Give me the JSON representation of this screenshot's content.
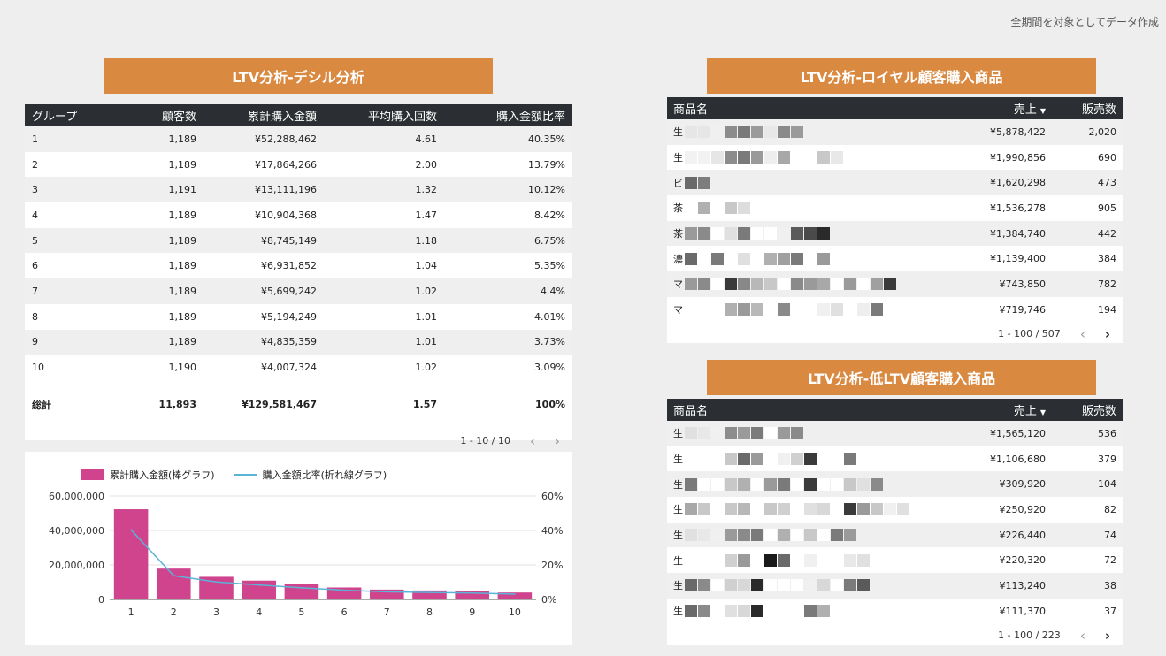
{
  "note": "全期間を対象としてデータ作成",
  "decile": {
    "title": "LTV分析-デシル分析",
    "columns": [
      "グループ",
      "顧客数",
      "累計購入金額",
      "平均購入回数",
      "購入金額比率"
    ],
    "rows": [
      [
        "1",
        "1,189",
        "¥52,288,462",
        "4.61",
        "40.35%"
      ],
      [
        "2",
        "1,189",
        "¥17,864,266",
        "2.00",
        "13.79%"
      ],
      [
        "3",
        "1,191",
        "¥13,111,196",
        "1.32",
        "10.12%"
      ],
      [
        "4",
        "1,189",
        "¥10,904,368",
        "1.47",
        "8.42%"
      ],
      [
        "5",
        "1,189",
        "¥8,745,149",
        "1.18",
        "6.75%"
      ],
      [
        "6",
        "1,189",
        "¥6,931,852",
        "1.04",
        "5.35%"
      ],
      [
        "7",
        "1,189",
        "¥5,699,242",
        "1.02",
        "4.4%"
      ],
      [
        "8",
        "1,189",
        "¥5,194,249",
        "1.01",
        "4.01%"
      ],
      [
        "9",
        "1,189",
        "¥4,835,359",
        "1.01",
        "3.73%"
      ],
      [
        "10",
        "1,190",
        "¥4,007,324",
        "1.02",
        "3.09%"
      ]
    ],
    "total": [
      "総計",
      "11,893",
      "¥129,581,467",
      "1.57",
      "100%"
    ],
    "pager": "1 - 10 / 10"
  },
  "arrows": {
    "prev": "‹",
    "next": "›"
  },
  "chart_data": {
    "type": "bar",
    "categories": [
      "1",
      "2",
      "3",
      "4",
      "5",
      "6",
      "7",
      "8",
      "9",
      "10"
    ],
    "series": [
      {
        "name": "累計購入金額(棒グラフ)",
        "type": "bar",
        "axis": "left",
        "color": "#d0448e",
        "values": [
          52288462,
          17864266,
          13111196,
          10904368,
          8745149,
          6931852,
          5699242,
          5194249,
          4835359,
          4007324
        ]
      },
      {
        "name": "購入金額比率(折れ線グラフ)",
        "type": "line",
        "axis": "right",
        "color": "#5ab4d8",
        "values": [
          40.35,
          13.79,
          10.12,
          8.42,
          6.75,
          5.35,
          4.4,
          4.01,
          3.73,
          3.09
        ]
      }
    ],
    "ylim": [
      0,
      60000000
    ],
    "y2lim": [
      0,
      60
    ],
    "yticks": [
      "0",
      "20,000,000",
      "40,000,000",
      "60,000,000"
    ],
    "y2ticks": [
      "0%",
      "20%",
      "40%",
      "60%"
    ],
    "legend": "top-left",
    "grid": true
  },
  "loyal": {
    "title": "LTV分析-ロイヤル顧客購入商品",
    "columns": [
      "商品名",
      "売上",
      "販売数"
    ],
    "sort_icon": "▼",
    "rows": [
      {
        "first": "生",
        "blocks": [
          "#e6e6e6",
          "#e6e6e6",
          "#f0f0f0",
          "#8c8c8c",
          "#7a7a7a",
          "#9a9a9a",
          "#e8e8e8",
          "#8a8a8a",
          "#9a9a9a"
        ],
        "sales": "¥5,878,422",
        "qty": "2,020"
      },
      {
        "first": "生",
        "blocks": [
          "#f2f2f2",
          "#f2f2f2",
          "#e6e6e6",
          "#8c8c8c",
          "#7a7a7a",
          "#9a9a9a",
          "#eeeeee",
          "#a8a8a8",
          "#ffffff",
          "#ffffff",
          "#c8c8c8",
          "#e8e8e8"
        ],
        "sales": "¥1,990,856",
        "qty": "690"
      },
      {
        "first": "ビ",
        "blocks": [
          "#6a6a6a",
          "#7d7d7d"
        ],
        "sales": "¥1,620,298",
        "qty": "473"
      },
      {
        "first": "茶",
        "blocks": [
          "#ffffff",
          "#b0b0b0",
          "#ffffff",
          "#c8c8c8",
          "#dddddd"
        ],
        "sales": "¥1,536,278",
        "qty": "905"
      },
      {
        "first": "茶",
        "blocks": [
          "#9a9a9a",
          "#8a8a8a",
          "#ffffff",
          "#e0e0e0",
          "#7a7a7a",
          "#ffffff",
          "#ffffff",
          "#f0f0f0",
          "#5a5a5a",
          "#4a4a4a",
          "#2a2a2a"
        ],
        "sales": "¥1,384,740",
        "qty": "442"
      },
      {
        "first": "濃",
        "blocks": [
          "#6a6a6a",
          "#ffffff",
          "#7a7a7a",
          "#ffffff",
          "#e0e0e0",
          "#ffffff",
          "#b0b0b0",
          "#a0a0a0",
          "#7a7a7a",
          "#ffffff",
          "#9a9a9a"
        ],
        "sales": "¥1,139,400",
        "qty": "384"
      },
      {
        "first": "マ",
        "blocks": [
          "#9a9a9a",
          "#8a8a8a",
          "#ffffff",
          "#3a3a3a",
          "#888888",
          "#b8b8b8",
          "#c8c8c8",
          "#ffffff",
          "#8a8a8a",
          "#9a9a9a",
          "#a8a8a8",
          "#ffffff",
          "#9a9a9a",
          "#ffffff",
          "#a0a0a0",
          "#3a3a3a"
        ],
        "sales": "¥743,850",
        "qty": "782"
      },
      {
        "first": "マ",
        "blocks": [
          "#ffffff",
          "#ffffff",
          "#ffffff",
          "#b0b0b0",
          "#9a9a9a",
          "#b8b8b8",
          "#ffffff",
          "#8a8a8a",
          "#ffffff",
          "#ffffff",
          "#f0f0f0",
          "#e0e0e0",
          "#ffffff",
          "#eeeeee",
          "#7a7a7a"
        ],
        "sales": "¥719,746",
        "qty": "194"
      }
    ],
    "pager": "1 - 100 / 507"
  },
  "low": {
    "title": "LTV分析-低LTV顧客購入商品",
    "columns": [
      "商品名",
      "売上",
      "販売数"
    ],
    "sort_icon": "▼",
    "rows": [
      {
        "first": "生",
        "blocks": [
          "#e0e0e0",
          "#e8e8e8",
          "#f0f0f0",
          "#8c8c8c",
          "#9a9a9a",
          "#7a7a7a",
          "#ffffff",
          "#9a9a9a",
          "#8a8a8a"
        ],
        "sales": "¥1,565,120",
        "qty": "536"
      },
      {
        "first": "生",
        "blocks": [
          "#ffffff",
          "#ffffff",
          "#ffffff",
          "#c8c8c8",
          "#6a6a6a",
          "#9a9a9a",
          "#ffffff",
          "#f0f0f0",
          "#d0d0d0",
          "#3a3a3a",
          "#ffffff",
          "#ffffff",
          "#7a7a7a"
        ],
        "sales": "¥1,106,680",
        "qty": "379"
      },
      {
        "first": "生",
        "blocks": [
          "#7a7a7a",
          "#ffffff",
          "#ffffff",
          "#c8c8c8",
          "#b0b0b0",
          "#ffffff",
          "#9a9a9a",
          "#7a7a7a",
          "#ffffff",
          "#3a3a3a",
          "#ffffff",
          "#ffffff",
          "#c8c8c8",
          "#e0e0e0",
          "#8a8a8a"
        ],
        "sales": "¥309,920",
        "qty": "104"
      },
      {
        "first": "生",
        "blocks": [
          "#a8a8a8",
          "#c8c8c8",
          "#ffffff",
          "#c8c8c8",
          "#b8b8b8",
          "#ffffff",
          "#c8c8c8",
          "#d0d0d0",
          "#ffffff",
          "#e0e0e0",
          "#d8d8d8",
          "#ffffff",
          "#3a3a3a",
          "#9a9a9a",
          "#c8c8c8",
          "#f0f0f0",
          "#e0e0e0"
        ],
        "sales": "¥250,920",
        "qty": "82"
      },
      {
        "first": "生",
        "blocks": [
          "#e0e0e0",
          "#e8e8e8",
          "#f0f0f0",
          "#9a9a9a",
          "#8a8a8a",
          "#7a7a7a",
          "#ffffff",
          "#b0b0b0",
          "#ffffff",
          "#c8c8c8",
          "#ffffff",
          "#7a7a7a",
          "#9a9a9a"
        ],
        "sales": "¥226,440",
        "qty": "74"
      },
      {
        "first": "生",
        "blocks": [
          "#ffffff",
          "#ffffff",
          "#ffffff",
          "#d0d0d0",
          "#9a9a9a",
          "#ffffff",
          "#1a1a1a",
          "#6a6a6a",
          "#ffffff",
          "#f0f0f0",
          "#ffffff",
          "#ffffff",
          "#e8e8e8",
          "#e0e0e0"
        ],
        "sales": "¥220,320",
        "qty": "72"
      },
      {
        "first": "生",
        "blocks": [
          "#6a6a6a",
          "#8a8a8a",
          "#ffffff",
          "#d0d0d0",
          "#d8d8d8",
          "#2a2a2a",
          "#ffffff",
          "#ffffff",
          "#ffffff",
          "#f0f0f0",
          "#d8d8d8",
          "#ffffff",
          "#7a7a7a",
          "#5a5a5a"
        ],
        "sales": "¥113,240",
        "qty": "38"
      },
      {
        "first": "生",
        "blocks": [
          "#6a6a6a",
          "#8a8a8a",
          "#ffffff",
          "#e0e0e0",
          "#d8d8d8",
          "#2a2a2a",
          "#ffffff",
          "#ffffff",
          "#ffffff",
          "#7a7a7a",
          "#b0b0b0"
        ],
        "sales": "¥111,370",
        "qty": "37"
      }
    ],
    "pager": "1 - 100 / 223"
  }
}
